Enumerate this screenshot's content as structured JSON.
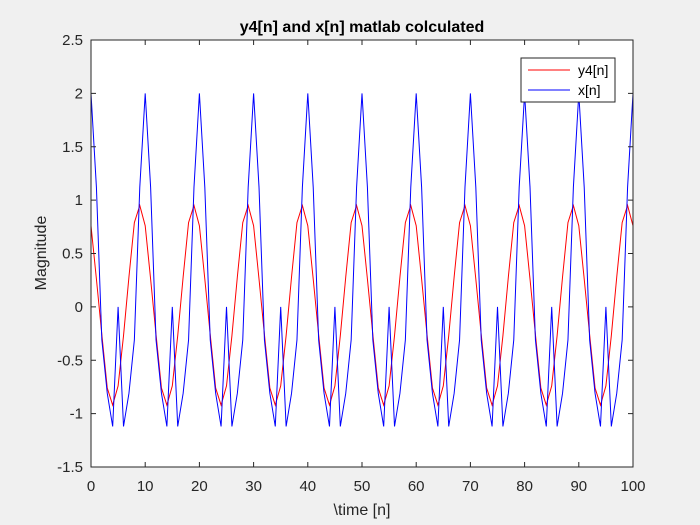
{
  "chart_data": {
    "type": "line",
    "title": "y4[n] and x[n] matlab colculated",
    "xlabel": "\\time [n]",
    "ylabel": "Magnitude",
    "xlim": [
      0,
      100
    ],
    "ylim": [
      -1.5,
      2.5
    ],
    "xticks": [
      0,
      10,
      20,
      30,
      40,
      50,
      60,
      70,
      80,
      90,
      100
    ],
    "yticks": [
      -1.5,
      -1,
      -0.5,
      0,
      0.5,
      1,
      1.5,
      2,
      2.5
    ],
    "xtick_labels": [
      "0",
      "10",
      "20",
      "30",
      "40",
      "50",
      "60",
      "70",
      "80",
      "90",
      "100"
    ],
    "ytick_labels": [
      "-1.5",
      "-1",
      "-0.5",
      "0",
      "0.5",
      "1",
      "1.5",
      "2",
      "2.5"
    ],
    "grid": false,
    "legend_position": "top-right",
    "x": [
      0,
      1,
      2,
      3,
      4,
      5,
      6,
      7,
      8,
      9,
      10,
      11,
      12,
      13,
      14,
      15,
      16,
      17,
      18,
      19,
      20,
      21,
      22,
      23,
      24,
      25,
      26,
      27,
      28,
      29,
      30,
      31,
      32,
      33,
      34,
      35,
      36,
      37,
      38,
      39,
      40,
      41,
      42,
      43,
      44,
      45,
      46,
      47,
      48,
      49,
      50,
      51,
      52,
      53,
      54,
      55,
      56,
      57,
      58,
      59,
      60,
      61,
      62,
      63,
      64,
      65,
      66,
      67,
      68,
      69,
      70,
      71,
      72,
      73,
      74,
      75,
      76,
      77,
      78,
      79,
      80,
      81,
      82,
      83,
      84,
      85,
      86,
      87,
      88,
      89,
      90,
      91,
      92,
      93,
      94,
      95,
      96,
      97,
      98,
      99,
      100
    ],
    "series": [
      {
        "name": "y4[n]",
        "color": "#ff0000",
        "values": [
          0.76,
          0.26,
          -0.26,
          -0.76,
          -0.92,
          -0.74,
          -0.27,
          0.28,
          0.79,
          0.95,
          0.76,
          0.26,
          -0.26,
          -0.76,
          -0.92,
          -0.74,
          -0.27,
          0.28,
          0.79,
          0.95,
          0.76,
          0.26,
          -0.26,
          -0.76,
          -0.92,
          -0.74,
          -0.27,
          0.28,
          0.79,
          0.95,
          0.76,
          0.26,
          -0.26,
          -0.76,
          -0.92,
          -0.74,
          -0.27,
          0.28,
          0.79,
          0.95,
          0.76,
          0.26,
          -0.26,
          -0.76,
          -0.92,
          -0.74,
          -0.27,
          0.28,
          0.79,
          0.95,
          0.76,
          0.26,
          -0.26,
          -0.76,
          -0.92,
          -0.74,
          -0.27,
          0.28,
          0.79,
          0.95,
          0.76,
          0.26,
          -0.26,
          -0.76,
          -0.92,
          -0.74,
          -0.27,
          0.28,
          0.79,
          0.95,
          0.76,
          0.26,
          -0.26,
          -0.76,
          -0.92,
          -0.74,
          -0.27,
          0.28,
          0.79,
          0.95,
          0.76,
          0.26,
          -0.26,
          -0.76,
          -0.92,
          -0.74,
          -0.27,
          0.28,
          0.79,
          0.95,
          0.76,
          0.26,
          -0.26,
          -0.76,
          -0.92,
          -0.74,
          -0.27,
          0.28,
          0.79,
          0.95,
          0.76
        ]
      },
      {
        "name": "x[n]",
        "color": "#0000ff",
        "values": [
          2.0,
          1.12,
          -0.31,
          -0.81,
          -1.12,
          0.0,
          -1.12,
          -0.81,
          -0.31,
          1.12,
          2.0,
          1.12,
          -0.31,
          -0.81,
          -1.12,
          0.0,
          -1.12,
          -0.81,
          -0.31,
          1.12,
          2.0,
          1.12,
          -0.31,
          -0.81,
          -1.12,
          0.0,
          -1.12,
          -0.81,
          -0.31,
          1.12,
          2.0,
          1.12,
          -0.31,
          -0.81,
          -1.12,
          0.0,
          -1.12,
          -0.81,
          -0.31,
          1.12,
          2.0,
          1.12,
          -0.31,
          -0.81,
          -1.12,
          0.0,
          -1.12,
          -0.81,
          -0.31,
          1.12,
          2.0,
          1.12,
          -0.31,
          -0.81,
          -1.12,
          0.0,
          -1.12,
          -0.81,
          -0.31,
          1.12,
          2.0,
          1.12,
          -0.31,
          -0.81,
          -1.12,
          0.0,
          -1.12,
          -0.81,
          -0.31,
          1.12,
          2.0,
          1.12,
          -0.31,
          -0.81,
          -1.12,
          0.0,
          -1.12,
          -0.81,
          -0.31,
          1.12,
          2.0,
          1.12,
          -0.31,
          -0.81,
          -1.12,
          0.0,
          -1.12,
          -0.81,
          -0.31,
          1.12,
          2.0,
          1.12,
          -0.31,
          -0.81,
          -1.12,
          0.0,
          -1.12,
          -0.81,
          -0.31,
          1.12,
          2.0
        ]
      }
    ]
  }
}
